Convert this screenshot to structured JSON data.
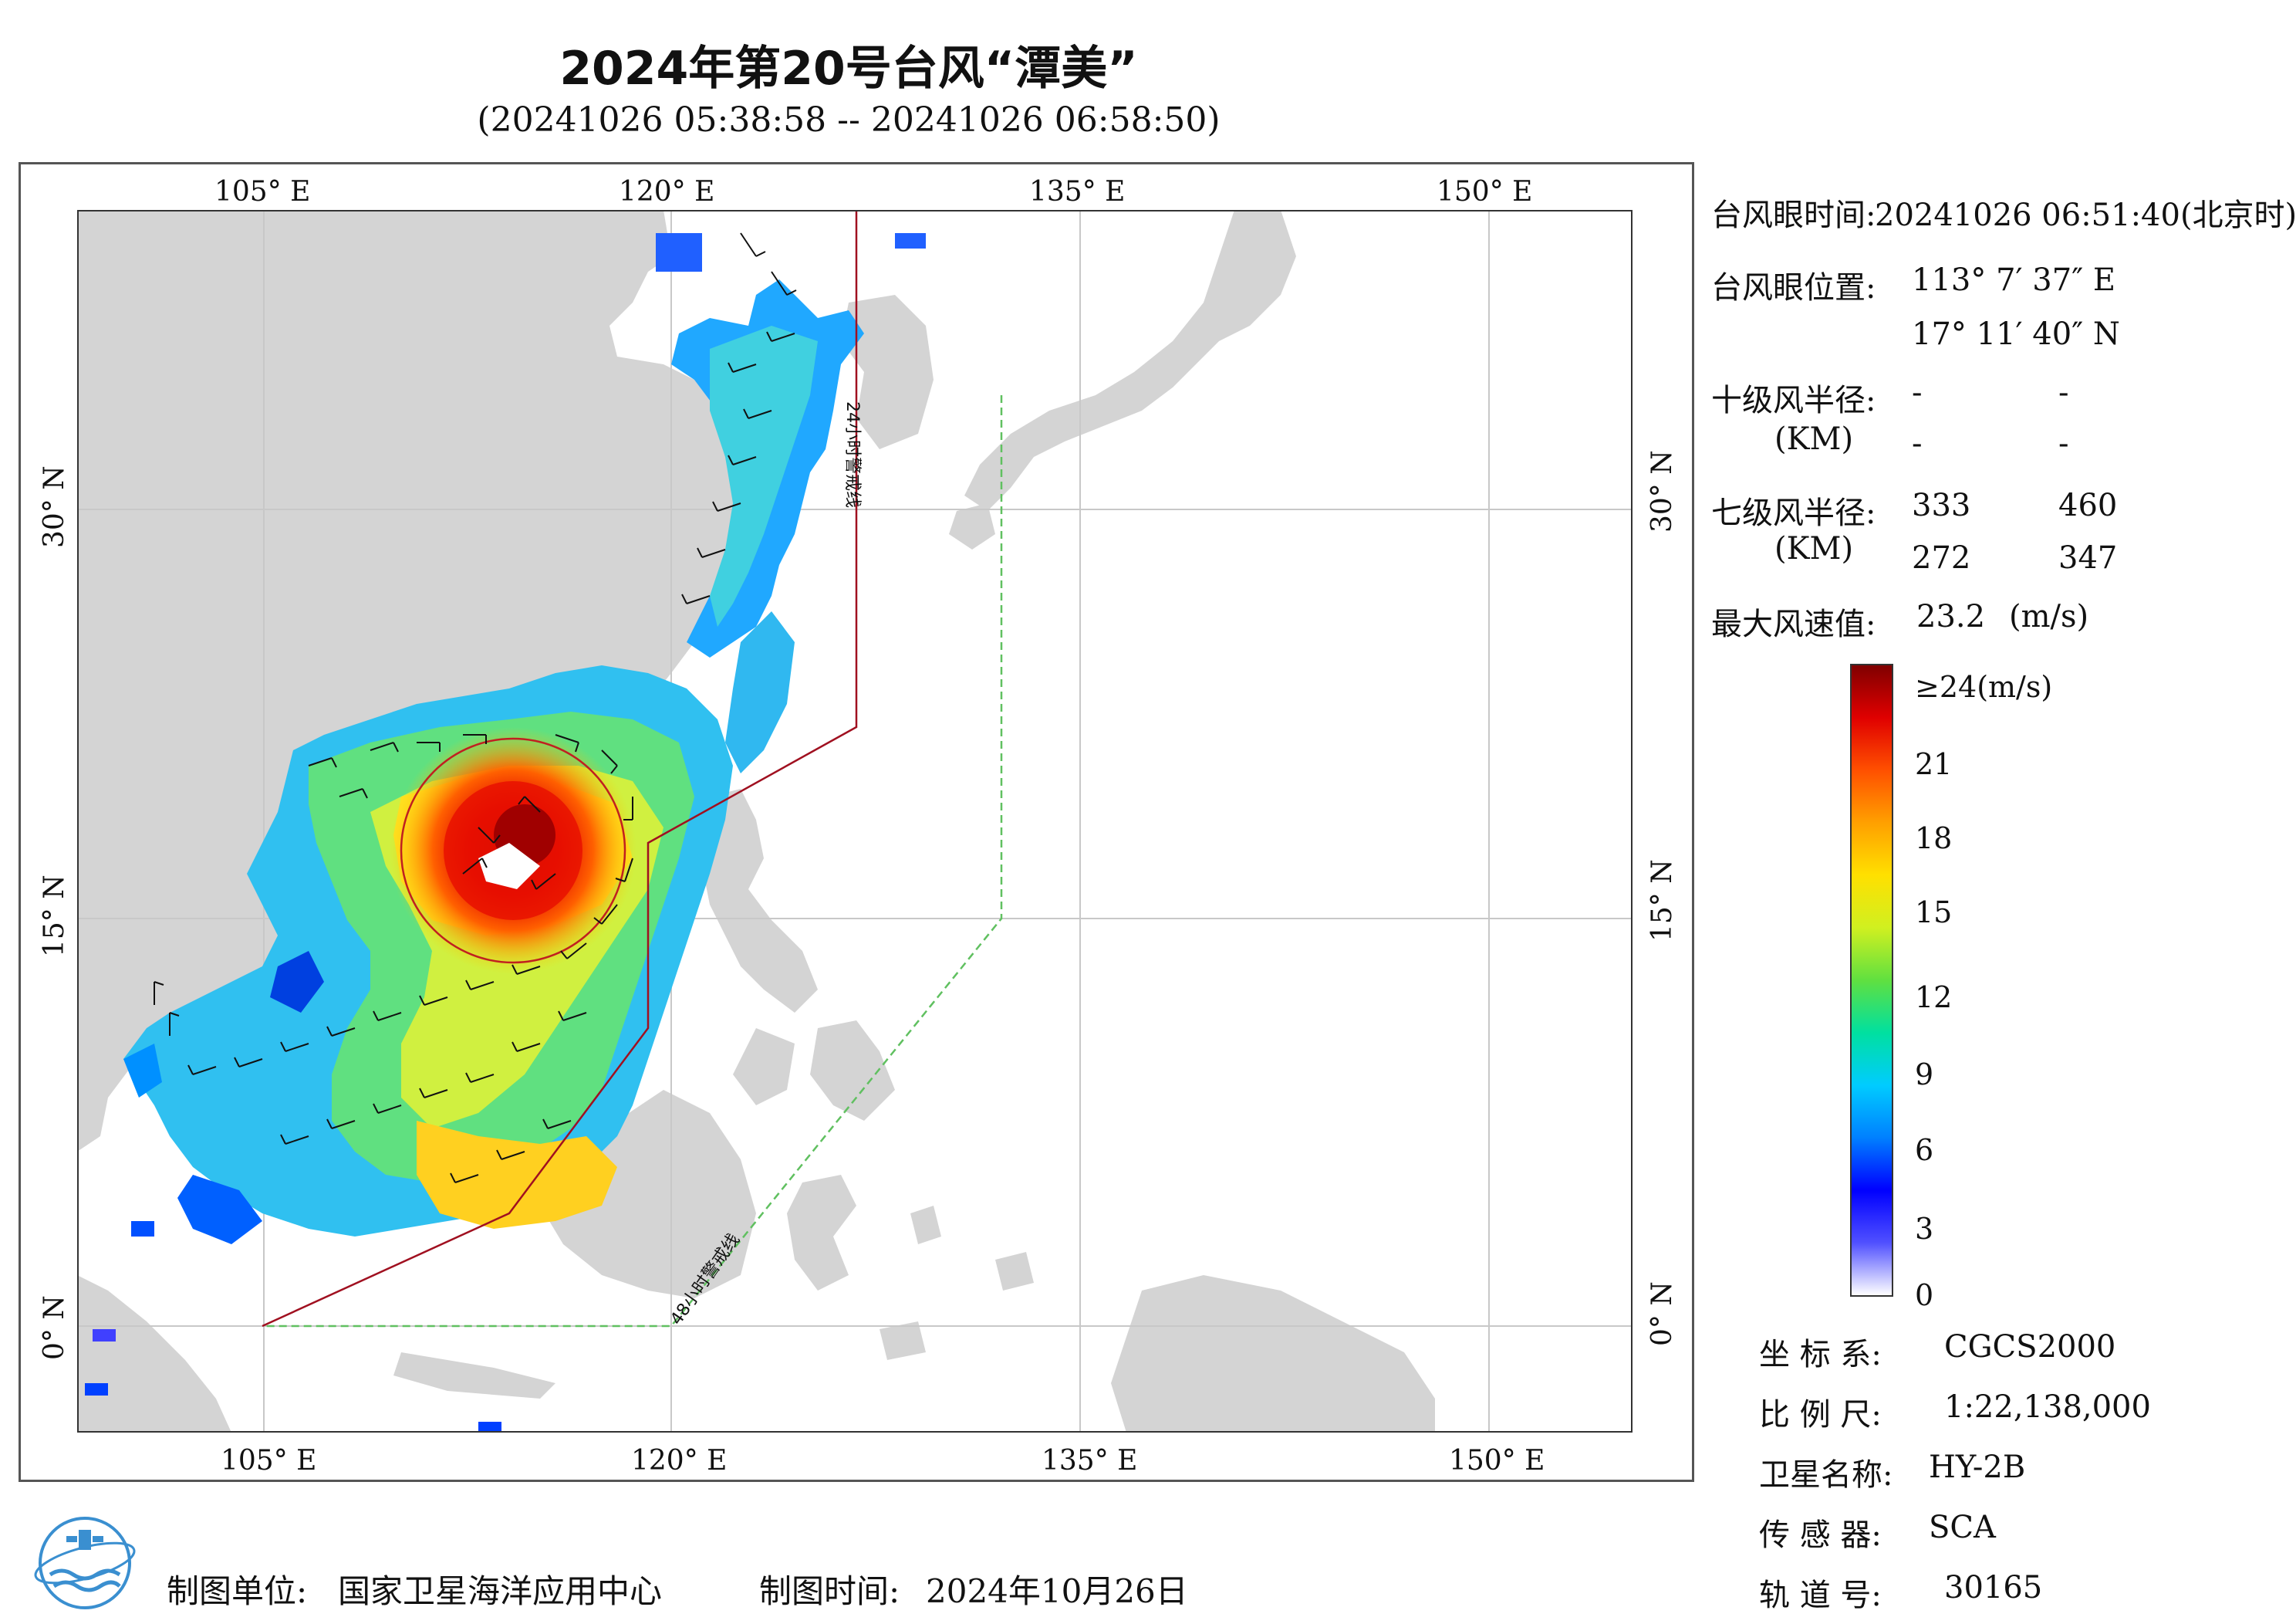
{
  "title": "2024年第20号台风“潭美”",
  "subtitle": "(20241026 05:38:58 -- 20241026 06:58:50)",
  "map": {
    "lon_labels": [
      "105° E",
      "120° E",
      "135° E",
      "150° E"
    ],
    "lat_labels": [
      "30° N",
      "15° N",
      "0° N"
    ],
    "warning_24h": "24小时警戒线",
    "warning_48h": "48小时警戒线"
  },
  "info": {
    "eye_time_label": "台风眼时间:",
    "eye_time_value": "20241026 06:51:40(北京时)",
    "eye_pos_label": "台风眼位置:",
    "eye_lon": "113° 7′ 37″ E",
    "eye_lat": "17° 11′ 40″ N",
    "r10_label": "十级风半径:",
    "r10_unit": "(KM)",
    "r10_values": [
      "-",
      "-",
      "-",
      "-"
    ],
    "r7_label": "七级风半径:",
    "r7_unit": "(KM)",
    "r7_values": [
      "333",
      "460",
      "272",
      "347"
    ],
    "max_wind_label": "最大风速值:",
    "max_wind_value": "23.2",
    "max_wind_unit": "(m/s)"
  },
  "colorbar": {
    "ticks": [
      "≥24(m/s)",
      "21",
      "18",
      "15",
      "12",
      "9",
      "6",
      "3",
      "0"
    ],
    "colors": [
      "#ffffff",
      "#5050ff",
      "#0000ff",
      "#0080ff",
      "#00ccff",
      "#00e0a0",
      "#60e040",
      "#d0f020",
      "#ffe000",
      "#ffa000",
      "#ff5000",
      "#e00000",
      "#800000"
    ]
  },
  "meta": {
    "crs_label": "坐 标 系:",
    "crs_value": "CGCS2000",
    "scale_label": "比 例 尺:",
    "scale_value": "1:22,138,000",
    "sat_label": "卫星名称:",
    "sat_value": "HY-2B",
    "sensor_label": "传 感 器:",
    "sensor_value": "SCA",
    "orbit_label": "轨 道 号:",
    "orbit_value": "30165"
  },
  "footer": {
    "producer_label": "制图单位:",
    "producer_value": "国家卫星海洋应用中心",
    "date_label": "制图时间:",
    "date_value": "2024年10月26日"
  }
}
